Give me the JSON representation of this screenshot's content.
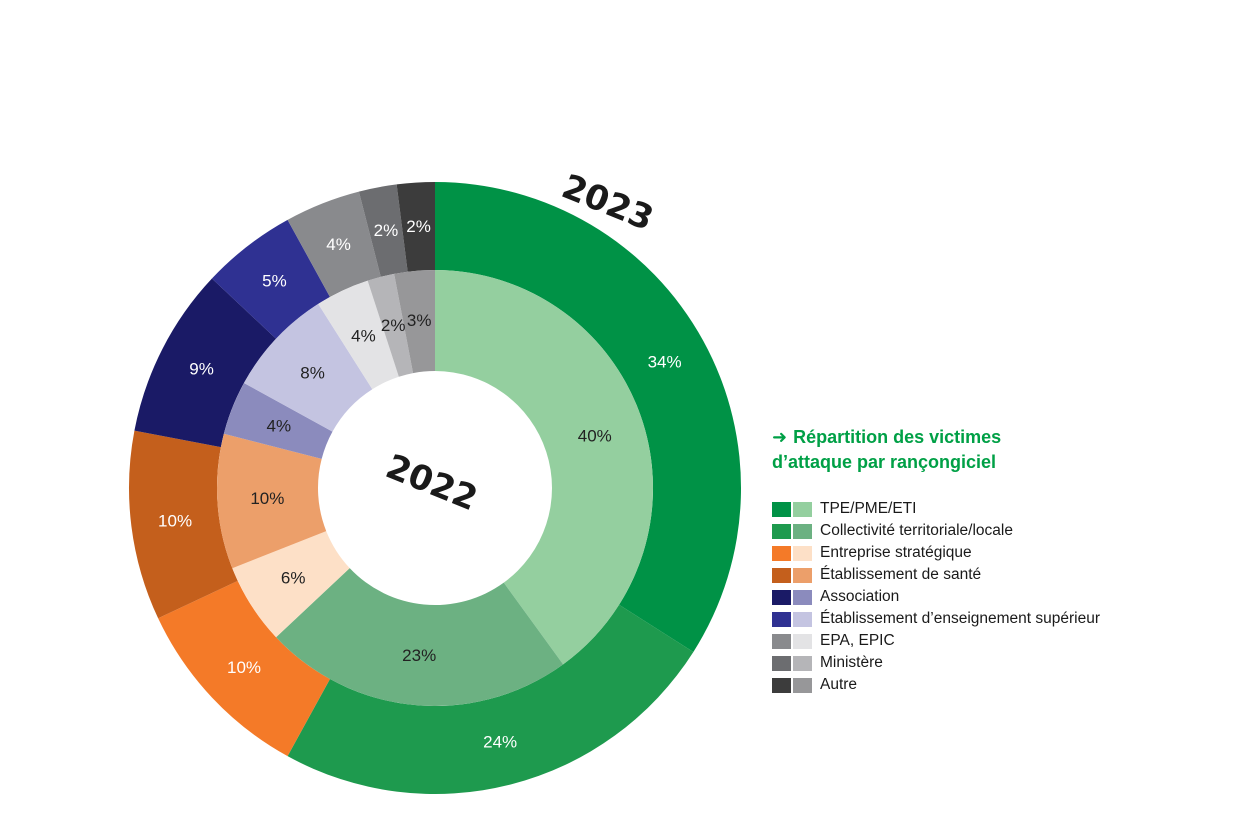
{
  "chart_data": {
    "type": "donut",
    "title": "Répartition des victimes d'attaque par rançongiciel",
    "rings": [
      {
        "name": "2023",
        "values": [
          34,
          24,
          10,
          10,
          9,
          5,
          4,
          2,
          2
        ],
        "labels": [
          "34%",
          "24%",
          "10%",
          "10%",
          "9%",
          "5%",
          "4%",
          "2%",
          "2%"
        ],
        "colors": [
          "#009246",
          "#1e9a4e",
          "#f47a28",
          "#c45f1c",
          "#1a1a66",
          "#2f3192",
          "#898a8d",
          "#6c6d70",
          "#3c3c3c"
        ]
      },
      {
        "name": "2022",
        "values": [
          40,
          23,
          6,
          10,
          4,
          8,
          4,
          2,
          3
        ],
        "labels": [
          "40%",
          "23%",
          "6%",
          "10%",
          "4%",
          "8%",
          "4%",
          "2%",
          "3%"
        ],
        "colors": [
          "#94cf9f",
          "#6cb182",
          "#fde0c7",
          "#ec9f6a",
          "#8b8bbd",
          "#c4c4e1",
          "#e3e3e5",
          "#b5b5b8",
          "#979799"
        ]
      }
    ],
    "categories": [
      "TPE/PME/ETI",
      "Collectivité territoriale/locale",
      "Entreprise stratégique",
      "Établissement de santé",
      "Association",
      "Établissement d’enseignement supérieur",
      "EPA, EPIC",
      "Ministère",
      "Autre"
    ],
    "legend_position": "right"
  },
  "legend": {
    "title_line1": "Répartition des victimes",
    "title_line2": "d’attaque par rançongiciel",
    "arrow": "➜"
  }
}
